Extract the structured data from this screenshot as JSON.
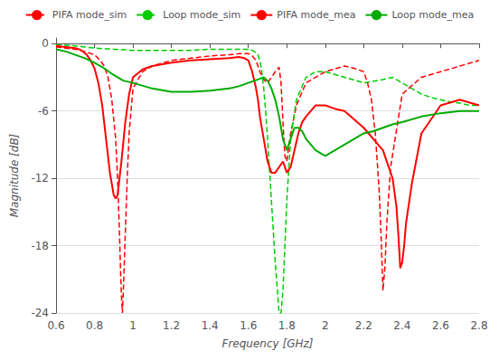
{
  "chart_data": {
    "type": "line",
    "xlabel": "Frequency [GHz]",
    "ylabel": "Magnitude [dB]",
    "xlim": [
      0.6,
      2.8
    ],
    "ylim": [
      -24,
      0.5
    ],
    "xticks": [
      0.6,
      0.8,
      1.0,
      1.2,
      1.4,
      1.6,
      1.8,
      2.0,
      2.2,
      2.4,
      2.6,
      2.8
    ],
    "yticks": [
      0,
      -6,
      -12,
      -18,
      -24
    ],
    "grid": true,
    "legend": "top",
    "series": [
      {
        "name": "PIFA mode_sim",
        "color": "#ff0000",
        "line_style": "dashed",
        "x": [
          0.6,
          0.65,
          0.7,
          0.75,
          0.8,
          0.83,
          0.85,
          0.87,
          0.89,
          0.91,
          0.92,
          0.93,
          0.935,
          0.94,
          0.945,
          0.95,
          0.96,
          0.97,
          0.98,
          1.0,
          1.05,
          1.1,
          1.2,
          1.3,
          1.4,
          1.5,
          1.55,
          1.6,
          1.62,
          1.64,
          1.65,
          1.66,
          1.68,
          1.7,
          1.72,
          1.74,
          1.75,
          1.76,
          1.77,
          1.78,
          1.79,
          1.8,
          1.82,
          1.85,
          1.9,
          2.0,
          2.1,
          2.15,
          2.2,
          2.22,
          2.24,
          2.26,
          2.28,
          2.29,
          2.3,
          2.31,
          2.32,
          2.34,
          2.4,
          2.5,
          2.6,
          2.7,
          2.8
        ],
        "values": [
          -0.3,
          -0.4,
          -0.5,
          -0.7,
          -1.0,
          -1.5,
          -2.0,
          -3.0,
          -5.0,
          -8.5,
          -12.0,
          -17.0,
          -20.0,
          -22.5,
          -24.0,
          -22.0,
          -17.0,
          -12.0,
          -8.0,
          -4.0,
          -2.5,
          -2.0,
          -1.5,
          -1.3,
          -1.1,
          -1.0,
          -0.9,
          -0.9,
          -1.1,
          -1.5,
          -2.0,
          -2.5,
          -3.2,
          -3.5,
          -3.0,
          -2.5,
          -2.3,
          -2.1,
          -3.5,
          -7.0,
          -10.0,
          -10.5,
          -8.0,
          -5.5,
          -3.5,
          -2.5,
          -2.0,
          -2.2,
          -2.5,
          -3.5,
          -5.0,
          -8.0,
          -13.0,
          -17.0,
          -22.0,
          -20.0,
          -16.0,
          -11.0,
          -4.5,
          -3.0,
          -2.5,
          -2.0,
          -1.5
        ]
      },
      {
        "name": "Loop mode_sim",
        "color": "#00cc00",
        "line_style": "dashed",
        "x": [
          0.6,
          0.65,
          0.7,
          0.75,
          0.8,
          0.9,
          1.0,
          1.1,
          1.2,
          1.3,
          1.4,
          1.45,
          1.5,
          1.55,
          1.6,
          1.62,
          1.64,
          1.65,
          1.66,
          1.67,
          1.68,
          1.69,
          1.7,
          1.72,
          1.74,
          1.76,
          1.77,
          1.78,
          1.79,
          1.8,
          1.82,
          1.85,
          1.9,
          1.95,
          2.0,
          2.1,
          2.2,
          2.3,
          2.35,
          2.4,
          2.45,
          2.5,
          2.55,
          2.6,
          2.65,
          2.7,
          2.75,
          2.8
        ],
        "values": [
          -0.1,
          -0.15,
          -0.2,
          -0.3,
          -0.4,
          -0.5,
          -0.6,
          -0.6,
          -0.6,
          -0.6,
          -0.5,
          -0.5,
          -0.5,
          -0.5,
          -0.5,
          -0.6,
          -0.8,
          -1.0,
          -1.5,
          -2.5,
          -4.0,
          -6.0,
          -8.5,
          -14.0,
          -19.5,
          -24.0,
          -24.0,
          -22.0,
          -18.0,
          -14.0,
          -8.5,
          -5.0,
          -3.0,
          -2.5,
          -2.5,
          -3.0,
          -3.5,
          -3.2,
          -3.0,
          -3.5,
          -4.0,
          -4.5,
          -4.8,
          -5.0,
          -5.2,
          -5.3,
          -5.5,
          -5.5
        ]
      },
      {
        "name": "PIFA mode_mea",
        "color": "#ff0000",
        "line_style": "solid",
        "x": [
          0.6,
          0.65,
          0.7,
          0.72,
          0.74,
          0.76,
          0.78,
          0.8,
          0.82,
          0.84,
          0.86,
          0.88,
          0.9,
          0.91,
          0.92,
          0.93,
          0.94,
          0.96,
          0.98,
          1.0,
          1.05,
          1.1,
          1.2,
          1.3,
          1.4,
          1.5,
          1.55,
          1.58,
          1.6,
          1.62,
          1.64,
          1.65,
          1.66,
          1.68,
          1.7,
          1.72,
          1.74,
          1.76,
          1.78,
          1.8,
          1.82,
          1.84,
          1.86,
          1.88,
          1.9,
          1.95,
          2.0,
          2.05,
          2.1,
          2.2,
          2.3,
          2.35,
          2.37,
          2.38,
          2.39,
          2.4,
          2.41,
          2.42,
          2.45,
          2.5,
          2.6,
          2.7,
          2.8
        ],
        "values": [
          -0.2,
          -0.3,
          -0.4,
          -0.5,
          -0.7,
          -1.0,
          -1.5,
          -2.2,
          -3.5,
          -5.5,
          -8.5,
          -11.5,
          -13.5,
          -13.8,
          -13.5,
          -12.0,
          -10.5,
          -7.0,
          -4.5,
          -3.0,
          -2.3,
          -2.0,
          -1.7,
          -1.5,
          -1.4,
          -1.3,
          -1.2,
          -1.3,
          -1.5,
          -2.5,
          -4.0,
          -5.0,
          -6.5,
          -8.5,
          -10.5,
          -11.5,
          -11.5,
          -11.0,
          -10.5,
          -11.5,
          -11.0,
          -9.5,
          -8.0,
          -7.0,
          -6.5,
          -5.5,
          -5.5,
          -5.8,
          -6.0,
          -7.5,
          -9.5,
          -12.0,
          -14.5,
          -17.0,
          -20.0,
          -19.5,
          -18.0,
          -16.0,
          -12.5,
          -8.0,
          -5.5,
          -5.0,
          -5.5
        ]
      },
      {
        "name": "Loop mode_mea",
        "color": "#00aa00",
        "line_style": "solid",
        "x": [
          0.6,
          0.65,
          0.7,
          0.75,
          0.8,
          0.85,
          0.9,
          0.95,
          1.0,
          1.1,
          1.2,
          1.3,
          1.4,
          1.5,
          1.55,
          1.6,
          1.65,
          1.68,
          1.7,
          1.72,
          1.74,
          1.76,
          1.77,
          1.78,
          1.79,
          1.8,
          1.82,
          1.84,
          1.86,
          1.88,
          1.9,
          1.95,
          2.0,
          2.05,
          2.1,
          2.15,
          2.2,
          2.25,
          2.3,
          2.35,
          2.4,
          2.5,
          2.6,
          2.7,
          2.8
        ],
        "values": [
          -0.5,
          -0.7,
          -1.0,
          -1.3,
          -1.7,
          -2.2,
          -2.8,
          -3.3,
          -3.5,
          -4.0,
          -4.3,
          -4.3,
          -4.2,
          -4.0,
          -3.8,
          -3.5,
          -3.2,
          -3.0,
          -3.3,
          -4.0,
          -5.0,
          -6.5,
          -7.5,
          -8.5,
          -9.0,
          -9.5,
          -8.5,
          -7.5,
          -7.5,
          -7.8,
          -8.5,
          -9.5,
          -10.0,
          -9.5,
          -9.0,
          -8.5,
          -8.0,
          -7.8,
          -7.5,
          -7.2,
          -7.0,
          -6.5,
          -6.2,
          -6.0,
          -6.0
        ]
      }
    ]
  }
}
